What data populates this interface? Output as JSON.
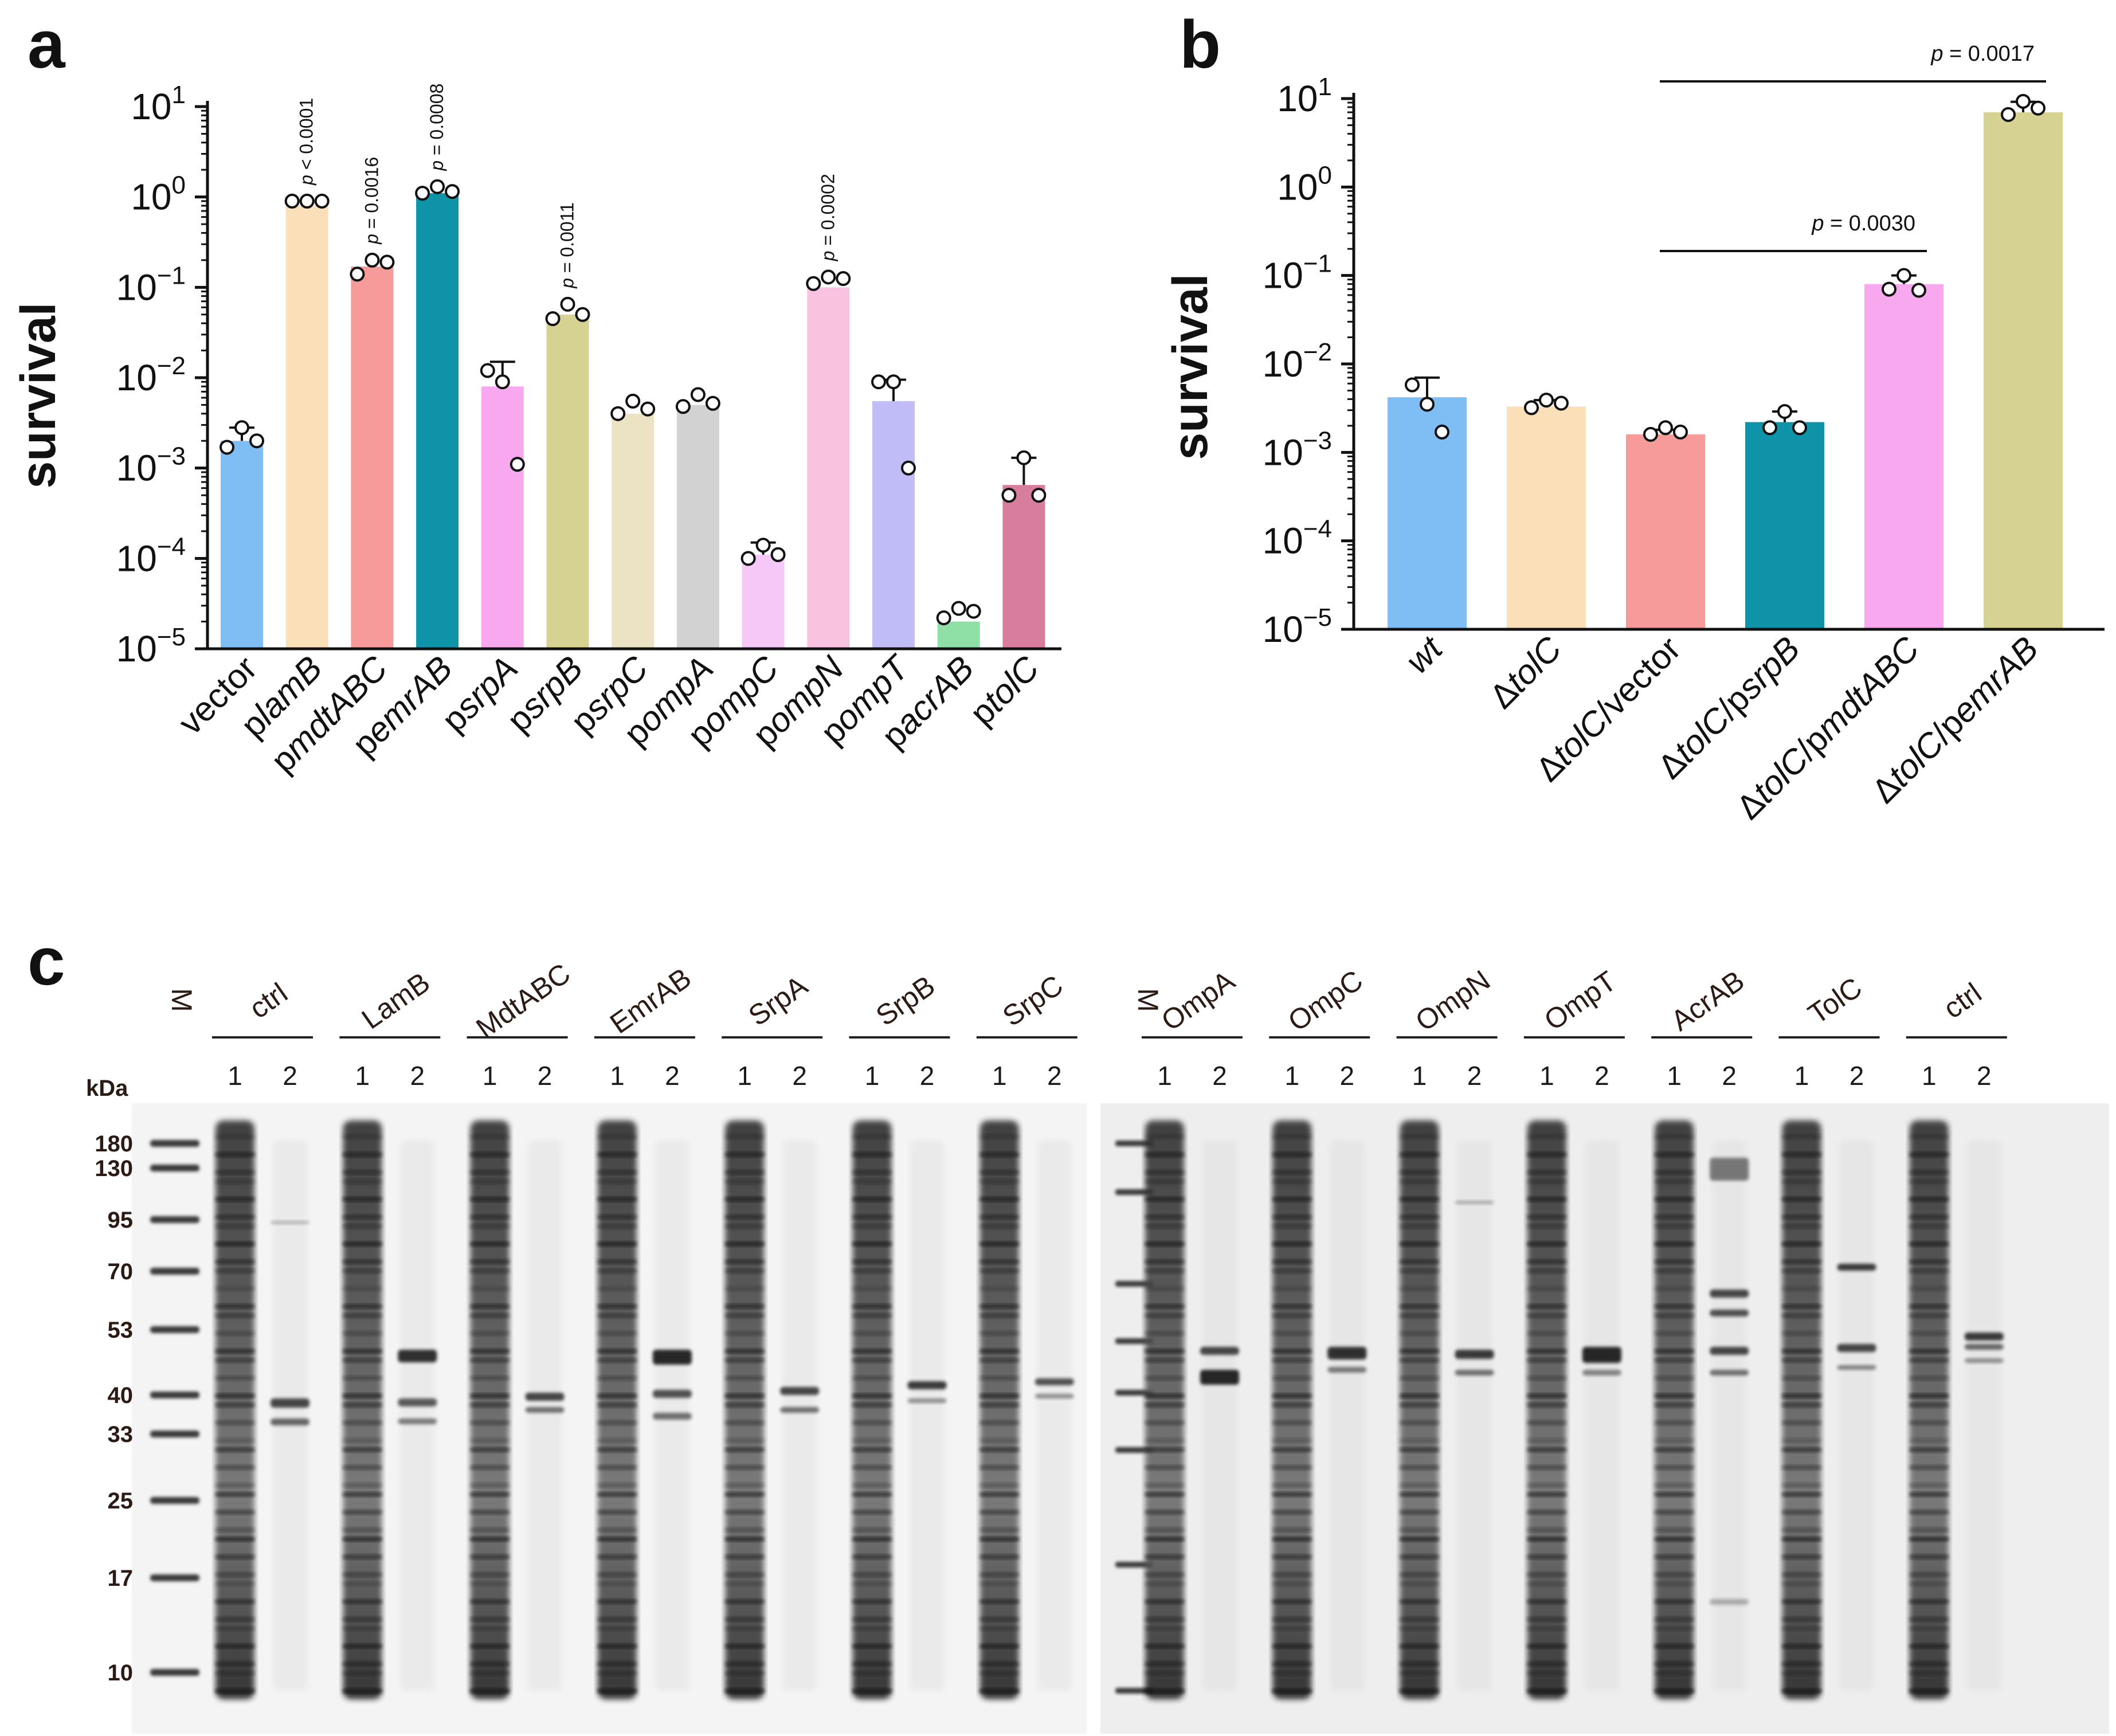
{
  "panels": {
    "a": "a",
    "b": "b",
    "c": "c"
  },
  "chart_data": [
    {
      "panel": "a",
      "type": "bar",
      "ylabel": "survival",
      "yscale": "log",
      "ylim": [
        1e-05,
        10
      ],
      "ytick_base": "10",
      "ytick_exponents": [
        "1",
        "0",
        "−1",
        "−2",
        "−3",
        "−4",
        "−5"
      ],
      "categories": [
        {
          "prefix": "",
          "italic": "",
          "suffix": "vector"
        },
        {
          "prefix": "p",
          "italic": "lamB",
          "suffix": ""
        },
        {
          "prefix": "p",
          "italic": "mdtABC",
          "suffix": ""
        },
        {
          "prefix": "p",
          "italic": "emrAB",
          "suffix": ""
        },
        {
          "prefix": "p",
          "italic": "srpA",
          "suffix": ""
        },
        {
          "prefix": "p",
          "italic": "srpB",
          "suffix": ""
        },
        {
          "prefix": "p",
          "italic": "srpC",
          "suffix": ""
        },
        {
          "prefix": "p",
          "italic": "ompA",
          "suffix": ""
        },
        {
          "prefix": "p",
          "italic": "ompC",
          "suffix": ""
        },
        {
          "prefix": "p",
          "italic": "ompN",
          "suffix": ""
        },
        {
          "prefix": "p",
          "italic": "ompT",
          "suffix": ""
        },
        {
          "prefix": "p",
          "italic": "acrAB",
          "suffix": ""
        },
        {
          "prefix": "p",
          "italic": "tolC",
          "suffix": ""
        }
      ],
      "values": [
        0.002,
        0.8,
        0.17,
        1.1,
        0.008,
        0.05,
        0.004,
        0.005,
        0.00011,
        0.1,
        0.0055,
        2e-05,
        0.00065
      ],
      "error_upper": [
        0.0028,
        0,
        0,
        0,
        0.015,
        0,
        0,
        0,
        0.00015,
        0,
        0.0095,
        0,
        0.0013
      ],
      "points": [
        [
          0.0017,
          0.0028,
          0.002
        ],
        [
          0.9,
          0.9,
          0.9
        ],
        [
          0.14,
          0.2,
          0.19
        ],
        [
          1.1,
          1.3,
          1.15
        ],
        [
          0.012,
          0.009,
          0.0011
        ],
        [
          0.045,
          0.065,
          0.05
        ],
        [
          0.004,
          0.0055,
          0.0045
        ],
        [
          0.0048,
          0.0065,
          0.0052
        ],
        [
          0.0001,
          0.00014,
          0.00011
        ],
        [
          0.11,
          0.13,
          0.125
        ],
        [
          0.009,
          0.009,
          0.001
        ],
        [
          2.2e-05,
          2.8e-05,
          2.6e-05
        ],
        [
          0.0005,
          0.0013,
          0.0005
        ]
      ],
      "colors": [
        "#7ebef5",
        "#fbdfb8",
        "#f79a9a",
        "#0f93a8",
        "#f8a8ef",
        "#d6d392",
        "#ebe3c4",
        "#d2d2d2",
        "#f5c8f7",
        "#f9c3e0",
        "#bfbcf7",
        "#8ee0a6",
        "#d87d9d"
      ],
      "annotations": [
        {
          "category": 1,
          "text": "p < 0.0001"
        },
        {
          "category": 2,
          "text": "p = 0.0016"
        },
        {
          "category": 3,
          "text": "p = 0.0008"
        },
        {
          "category": 5,
          "text": "p = 0.0011"
        },
        {
          "category": 9,
          "text": "p = 0.0002"
        }
      ]
    },
    {
      "panel": "b",
      "type": "bar",
      "ylabel": "survival",
      "yscale": "log",
      "ylim": [
        1e-05,
        10
      ],
      "ytick_base": "10",
      "ytick_exponents": [
        "1",
        "0",
        "−1",
        "−2",
        "−3",
        "−4",
        "−5"
      ],
      "categories": [
        {
          "delta": "",
          "italic": "wt",
          "mid": "",
          "italic2": ""
        },
        {
          "delta": "Δ",
          "italic": "tolC",
          "mid": "",
          "italic2": ""
        },
        {
          "delta": "Δ",
          "italic": "tolC",
          "mid": "/vector",
          "italic2": ""
        },
        {
          "delta": "Δ",
          "italic": "tolC",
          "mid": "/p",
          "italic2": "srpB"
        },
        {
          "delta": "Δ",
          "italic": "tolC",
          "mid": "/p",
          "italic2": "mdtABC"
        },
        {
          "delta": "Δ",
          "italic": "tolC",
          "mid": "/p",
          "italic2": "emrAB"
        }
      ],
      "values": [
        0.0042,
        0.0033,
        0.0016,
        0.0022,
        0.08,
        7
      ],
      "error_upper": [
        0.007,
        0.0039,
        0.0018,
        0.0029,
        0.1,
        9.2
      ],
      "points": [
        [
          0.0058,
          0.0035,
          0.0017
        ],
        [
          0.0032,
          0.0039,
          0.0036
        ],
        [
          0.0016,
          0.0019,
          0.0017
        ],
        [
          0.0019,
          0.0029,
          0.0019
        ],
        [
          0.07,
          0.1,
          0.068
        ],
        [
          6.6,
          9.3,
          7.8
        ]
      ],
      "colors": [
        "#7ebef5",
        "#fbdfb8",
        "#f79a9a",
        "#0f93a8",
        "#f8a8ef",
        "#d6d392"
      ],
      "comparisons": [
        {
          "from": 2,
          "to": 4,
          "text": "p = 0.0030"
        },
        {
          "from": 2,
          "to": 5,
          "text": "p = 0.0017"
        }
      ]
    }
  ],
  "gel": {
    "group_labels_left": [
      "ctrl",
      "LamB",
      "MdtABC",
      "EmrAB",
      "SrpA",
      "SrpB",
      "SrpC"
    ],
    "group_labels_right": [
      "OmpA",
      "OmpC",
      "OmpN",
      "OmpT",
      "AcrAB",
      "TolC",
      "ctrl"
    ],
    "marker_label": "M",
    "lane_numbers": [
      "1",
      "2"
    ],
    "mw_unit": "kDa",
    "mw_markers": [
      "180",
      "130",
      "95",
      "70",
      "53",
      "40",
      "33",
      "25",
      "17",
      "10"
    ]
  }
}
